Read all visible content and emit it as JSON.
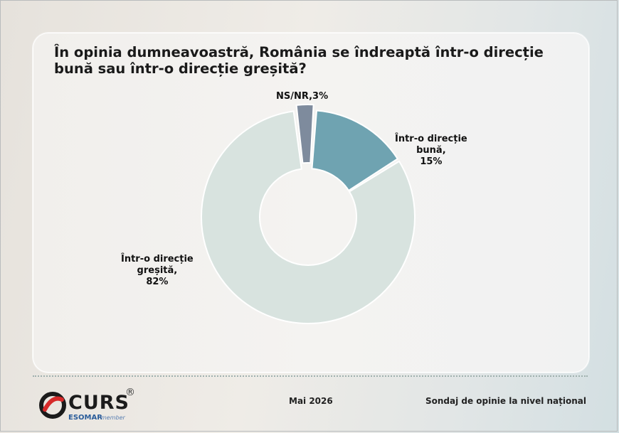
{
  "chart_data": {
    "type": "pie",
    "variant": "donut",
    "title": "În opinia dumneavoastră, România se îndreaptă într-o direcție bună sau într-o direcție greșită?",
    "unit": "%",
    "slices": [
      {
        "label": "NS/NR",
        "value": 3,
        "display": "NS/NR,3%",
        "color": "#7e8b9d",
        "exploded": true
      },
      {
        "label": "Într-o direcție bună",
        "value": 15,
        "display_lines": [
          "Într-o direcție",
          "bună,",
          "15%"
        ],
        "color": "#6fa3b1",
        "exploded": false
      },
      {
        "label": "Într-o direcție greșită",
        "value": 82,
        "display_lines": [
          "Într-o direcție",
          "greșită,",
          "82%"
        ],
        "color": "#d8e3df",
        "exploded": false
      }
    ]
  },
  "footer": {
    "brand": "CURS",
    "registered": "®",
    "esomar": "ESOMAR",
    "member": "member",
    "date": "Mai 2026",
    "note": "Sondaj de opinie la nivel național"
  },
  "colors": {
    "background": "#ece9e4",
    "panel": "#f3f2f0",
    "logo_red": "#d62a2a"
  }
}
